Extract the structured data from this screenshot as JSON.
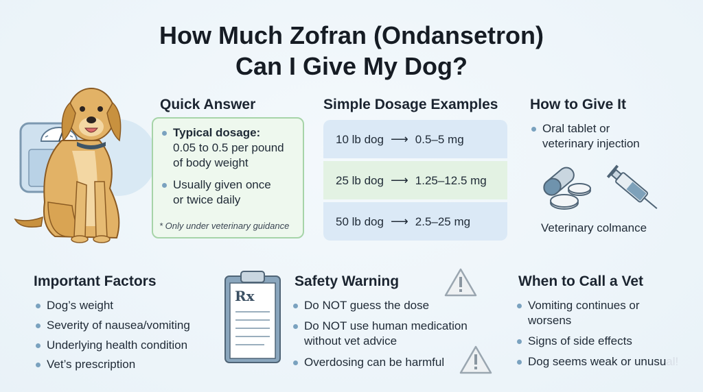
{
  "title": {
    "line1": "How Much Zofran (Ondansetron)",
    "line2": "Can I Give My Dog?"
  },
  "quick_answer": {
    "heading": "Quick Answer",
    "item1_line1": "Typical dosage:",
    "item1_line2": "0.05 to 0.5 per pound",
    "item1_line3": "of body weight",
    "item2_line1": "Usually given once",
    "item2_line2": "or twice daily",
    "note": "* Only under veterinary guidance",
    "colors": {
      "border": "#a6d4a8",
      "fill": "#eef8ee"
    }
  },
  "dosage_examples": {
    "heading": "Simple Dosage Examples",
    "rows": [
      {
        "weight": "10 lb dog",
        "arrow": "⟶",
        "dose": "0.5–5 mg",
        "color": "#dbe9f6"
      },
      {
        "weight": "25 lb dog",
        "arrow": "⟶",
        "dose": "1.25–12.5 mg",
        "color": "#e3f2e3"
      },
      {
        "weight": "50 lb dog",
        "arrow": "⟶",
        "dose": "2.5–25 mg",
        "color": "#dbe9f6"
      }
    ]
  },
  "how_to_give": {
    "heading": "How to Give It",
    "item_line1": "Oral tablet or",
    "item_line2": "veterinary injection",
    "caption": "Veterinary colmance"
  },
  "important_factors": {
    "heading": "Important Factors",
    "items": [
      "Dog’s weight",
      "Severity of nausea/vomiting",
      "Underlying health condition",
      "Vet’s prescription"
    ]
  },
  "safety_warning": {
    "heading": "Safety Warning",
    "item1": "Do NOT guess the dose",
    "item2_line1": "Do NOT use human medication",
    "item2_line2": "without vet advice",
    "item3": "Overdosing can be harmful",
    "clipboard_text": "Rx"
  },
  "when_to_call": {
    "heading": "When to Call a Vet",
    "item1_line1": "Vomiting continues or",
    "item1_line2": "worsens",
    "item2": "Signs of side effects",
    "item3_main": "Dog seems weak or unusu",
    "item3_faded": "al!"
  },
  "icons": [
    "dog-illustration",
    "scale-icon",
    "pill-capsule-icon",
    "tablet-icon",
    "syringe-icon",
    "clipboard-icon",
    "warning-icon"
  ]
}
